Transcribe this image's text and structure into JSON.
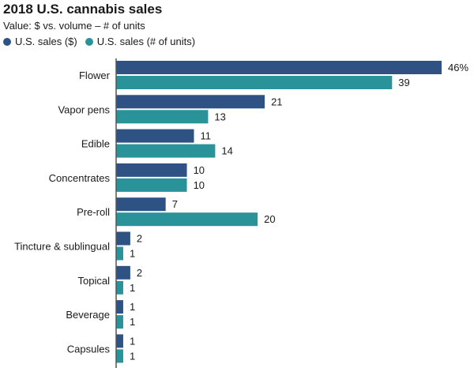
{
  "chart_data": {
    "type": "bar",
    "orientation": "horizontal",
    "title": "2018 U.S. cannabis sales",
    "subtitle": "Value: $ vs. volume – # of units",
    "xlabel": "",
    "ylabel": "",
    "xlim": [
      0,
      46
    ],
    "grid": false,
    "legend_position": "top-left",
    "value_suffix_first": "%",
    "categories": [
      "Flower",
      "Vapor pens",
      "Edible",
      "Concentrates",
      "Pre-roll",
      "Tincture & sublingual",
      "Topical",
      "Beverage",
      "Capsules"
    ],
    "series": [
      {
        "name": "U.S. sales ($)",
        "color": "#2e5283",
        "values": [
          46,
          21,
          11,
          10,
          7,
          2,
          2,
          1,
          1
        ]
      },
      {
        "name": "U.S. sales (# of units)",
        "color": "#2a9399",
        "values": [
          39,
          13,
          14,
          10,
          20,
          1,
          1,
          1,
          1
        ]
      }
    ]
  }
}
